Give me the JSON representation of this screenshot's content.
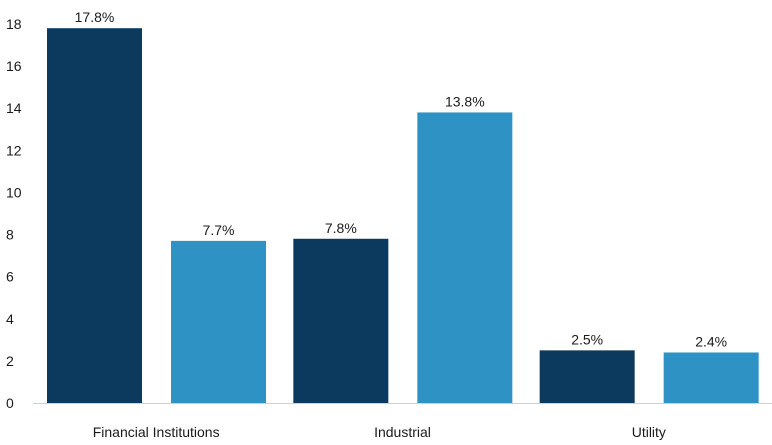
{
  "chart_data": {
    "type": "bar",
    "categories": [
      "Financial Institutions",
      "Industrial",
      "Utility"
    ],
    "series": [
      {
        "values": [
          17.8,
          7.8,
          2.5
        ],
        "labels": [
          "17.8%",
          "7.8%",
          "2.5%"
        ],
        "color": "#0b3a5e"
      },
      {
        "values": [
          7.7,
          13.8,
          2.4
        ],
        "labels": [
          "7.7%",
          "13.8%",
          "2.4%"
        ],
        "color": "#2e93c4"
      }
    ],
    "y_ticks": [
      "0",
      "2",
      "4",
      "6",
      "8",
      "10",
      "12",
      "14",
      "16",
      "18"
    ],
    "ylim": [
      0,
      18
    ],
    "grid": false,
    "legend": "none"
  }
}
